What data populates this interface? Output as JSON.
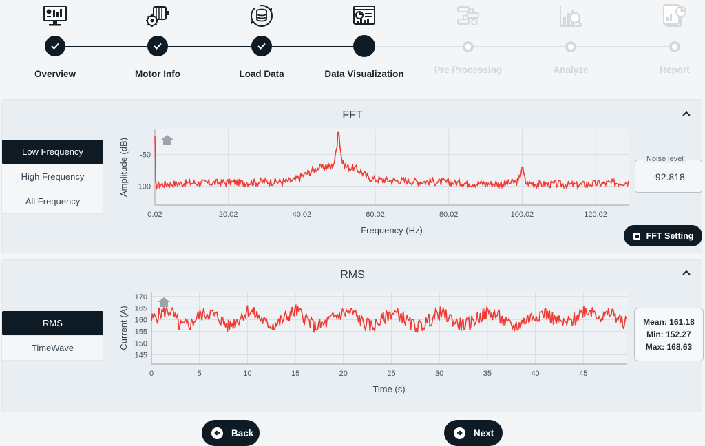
{
  "stepper": {
    "steps": [
      {
        "label": "Overview",
        "state": "done",
        "icon": "overview-monitor-icon"
      },
      {
        "label": "Motor Info",
        "state": "done",
        "icon": "motor-gear-icon"
      },
      {
        "label": "Load Data",
        "state": "done",
        "icon": "database-sync-icon"
      },
      {
        "label": "Data Visualization",
        "state": "current",
        "icon": "dashboard-chart-icon"
      },
      {
        "label": "Pre Processing",
        "state": "todo",
        "icon": "pipeline-icon"
      },
      {
        "label": "Analyze",
        "state": "todo",
        "icon": "analyze-chart-icon"
      },
      {
        "label": "Report",
        "state": "todo",
        "icon": "report-document-icon"
      }
    ],
    "colors": {
      "done": "#0f1b24",
      "todo": "#d4d9dd"
    }
  },
  "fft": {
    "title": "FFT",
    "tabs": [
      "Low Frequency",
      "High Frequency",
      "All Frequency"
    ],
    "active_tab": "Low Frequency",
    "noise_label": "Noise level",
    "noise_value": "-92.818",
    "setting_label": "FFT Setting"
  },
  "rms": {
    "title": "RMS",
    "tabs": [
      "RMS",
      "TimeWave"
    ],
    "active_tab": "RMS",
    "stats": {
      "mean": "Mean: 161.18",
      "min": "Min: 152.27",
      "max": "Max: 168.63"
    }
  },
  "nav": {
    "back_label": "Back",
    "next_label": "Next"
  },
  "chart_data": [
    {
      "type": "line",
      "title": "",
      "xlabel": "Frequency (Hz)",
      "ylabel": "Amplitude (dB)",
      "xlim": [
        0.02,
        129
      ],
      "ylim": [
        -130,
        -10
      ],
      "x_ticks": [
        "0.02",
        "20.02",
        "40.02",
        "60.02",
        "80.02",
        "100.02",
        "120.02"
      ],
      "y_ticks": [
        "-50",
        "-100"
      ],
      "grid": true,
      "color": "#ef3b33",
      "series": [
        {
          "x": [
            0.02,
            5,
            10,
            15,
            20,
            25,
            30,
            35,
            38,
            40,
            42,
            44,
            46,
            48,
            49,
            50,
            51,
            52,
            54,
            56,
            58,
            60,
            65,
            70,
            75,
            80,
            85,
            90,
            95,
            99,
            100,
            101,
            105,
            110,
            115,
            120,
            125,
            129
          ],
          "y": [
            -98,
            -96,
            -95,
            -95,
            -94,
            -94,
            -93,
            -93,
            -91,
            -84,
            -78,
            -72,
            -70,
            -70,
            -60,
            -15,
            -62,
            -69,
            -71,
            -76,
            -86,
            -89,
            -91,
            -92,
            -93,
            -94,
            -95,
            -96,
            -96,
            -93,
            -70,
            -95,
            -97,
            -97,
            -98,
            -96,
            -95,
            -93
          ]
        }
      ]
    },
    {
      "type": "line",
      "title": "",
      "xlabel": "Time (s)",
      "ylabel": "Current (A)",
      "xlim": [
        0,
        49.5
      ],
      "ylim": [
        141,
        172
      ],
      "x_ticks": [
        "0",
        "5",
        "10",
        "15",
        "20",
        "25",
        "30",
        "35",
        "40",
        "45"
      ],
      "y_ticks": [
        "170",
        "165",
        "160",
        "155",
        "150",
        "145"
      ],
      "grid": true,
      "color": "#ef3b33",
      "series": [
        {
          "x": [
            0,
            1,
            2,
            3,
            4,
            5,
            6,
            7,
            8,
            9,
            10,
            11,
            12,
            13,
            14,
            15,
            16,
            17,
            18,
            19,
            20,
            21,
            22,
            23,
            24,
            25,
            26,
            27,
            28,
            29,
            30,
            31,
            32,
            33,
            34,
            35,
            36,
            37,
            38,
            39,
            40,
            41,
            42,
            43,
            44,
            45,
            46,
            47,
            48,
            49
          ],
          "y": [
            160,
            163,
            164,
            157,
            158,
            162,
            163,
            161,
            157,
            160,
            164,
            162,
            158,
            158,
            161,
            164,
            161,
            157,
            158,
            161,
            163,
            163,
            159,
            157,
            160,
            163,
            162,
            158,
            157,
            160,
            163,
            161,
            158,
            158,
            161,
            163,
            162,
            158,
            157,
            160,
            162,
            163,
            160,
            158,
            160,
            164,
            164,
            161,
            163,
            159
          ]
        }
      ],
      "mean": 161.18,
      "min": 152.27,
      "max": 168.63
    }
  ]
}
